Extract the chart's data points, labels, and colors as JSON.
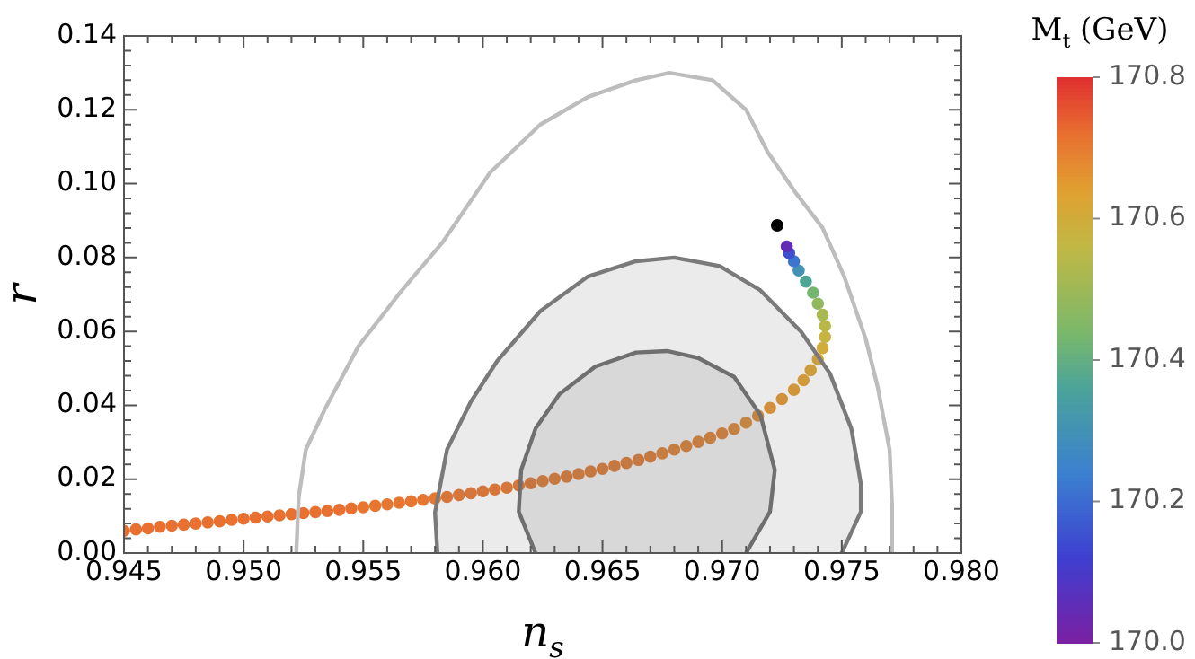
{
  "chart_data": {
    "type": "scatter",
    "xlabel": "n$_{s}$",
    "ylabel": "r",
    "clabel": "M$_{t}$ (GeV)",
    "xlim": [
      0.945,
      0.98
    ],
    "ylim": [
      0,
      0.14
    ],
    "xticks": [
      {
        "value": 0.945,
        "label": "0.945"
      },
      {
        "value": 0.95,
        "label": "0.950"
      },
      {
        "value": 0.955,
        "label": "0.955"
      },
      {
        "value": 0.96,
        "label": "0.960"
      },
      {
        "value": 0.965,
        "label": "0.965"
      },
      {
        "value": 0.97,
        "label": "0.970"
      },
      {
        "value": 0.975,
        "label": "0.975"
      },
      {
        "value": 0.98,
        "label": "0.980"
      }
    ],
    "yticks": [
      {
        "value": 0,
        "label": "0.00"
      },
      {
        "value": 0.02,
        "label": "0.02"
      },
      {
        "value": 0.04,
        "label": "0.04"
      },
      {
        "value": 0.06,
        "label": "0.06"
      },
      {
        "value": 0.08,
        "label": "0.08"
      },
      {
        "value": 0.1,
        "label": "0.10"
      },
      {
        "value": 0.12,
        "label": "0.12"
      },
      {
        "value": 0.14,
        "label": "0.14"
      }
    ],
    "clim": [
      170.0,
      170.8
    ],
    "cticks": [
      {
        "value": 170.0,
        "label": "170.0"
      },
      {
        "value": 170.2,
        "label": "170.2"
      },
      {
        "value": 170.4,
        "label": "170.4"
      },
      {
        "value": 170.6,
        "label": "170.6"
      },
      {
        "value": 170.8,
        "label": "170.8"
      }
    ],
    "grid": false,
    "series": [
      {
        "type": "line",
        "color": "#bdbdbd",
        "marker": "none",
        "x": [
          0.9522,
          0.9523,
          0.9526,
          0.9534,
          0.9548,
          0.9566,
          0.9583,
          0.9603,
          0.9624,
          0.9644,
          0.9664,
          0.9678,
          0.9696,
          0.971,
          0.9719,
          0.9731,
          0.9742,
          0.9751,
          0.976,
          0.9765,
          0.977,
          0.9771,
          0.9771
        ],
        "values": [
          0,
          0.015,
          0.028,
          0.039,
          0.056,
          0.071,
          0.084,
          0.103,
          0.116,
          0.1235,
          0.128,
          0.13,
          0.128,
          0.12,
          0.1086,
          0.0973,
          0.088,
          0.0749,
          0.058,
          0.045,
          0.028,
          0.013,
          0
        ]
      },
      {
        "type": "area",
        "color": "#7a7a7a",
        "marker": "none",
        "x": [
          0.9581,
          0.958,
          0.9585,
          0.9595,
          0.9606,
          0.9624,
          0.9644,
          0.9664,
          0.968,
          0.9699,
          0.9716,
          0.9733,
          0.9745,
          0.9754,
          0.9758,
          0.9758,
          0.975
        ],
        "values": [
          0,
          0.011,
          0.028,
          0.041,
          0.052,
          0.0655,
          0.0749,
          0.079,
          0.08,
          0.0777,
          0.0711,
          0.0599,
          0.0487,
          0.0337,
          0.0187,
          0.0112,
          0
        ]
      },
      {
        "type": "area",
        "color": "#6e6e6e",
        "marker": "none",
        "x": [
          0.9622,
          0.9615,
          0.9616,
          0.9622,
          0.9632,
          0.9647,
          0.9664,
          0.9677,
          0.969,
          0.9705,
          0.9716,
          0.9722,
          0.972,
          0.971
        ],
        "values": [
          0,
          0.0112,
          0.0225,
          0.0337,
          0.043,
          0.0505,
          0.0543,
          0.0547,
          0.0528,
          0.0477,
          0.0374,
          0.0225,
          0.0112,
          0
        ]
      },
      {
        "type": "scatter",
        "marker": "circle",
        "x": [
          0.945,
          0.9455,
          0.946,
          0.9465,
          0.947,
          0.9475,
          0.948,
          0.9485,
          0.949,
          0.9495,
          0.95,
          0.9505,
          0.951,
          0.9515,
          0.952,
          0.9525,
          0.953,
          0.9535,
          0.954,
          0.9545,
          0.955,
          0.9555,
          0.956,
          0.9565,
          0.957,
          0.9575,
          0.958,
          0.9585,
          0.959,
          0.9595,
          0.96,
          0.9605,
          0.961,
          0.9615,
          0.962,
          0.9625,
          0.963,
          0.9635,
          0.964,
          0.9645,
          0.965,
          0.9655,
          0.966,
          0.9665,
          0.967,
          0.9675,
          0.968,
          0.9685,
          0.969,
          0.9695,
          0.97,
          0.9705,
          0.971,
          0.9715,
          0.972,
          0.9725,
          0.973,
          0.9734,
          0.9737,
          0.974,
          0.9742,
          0.9743,
          0.9743,
          0.9742,
          0.974,
          0.9738,
          0.9735,
          0.9732,
          0.973,
          0.9728,
          0.9727
        ],
        "values": [
          0.006,
          0.0064,
          0.0067,
          0.0071,
          0.0074,
          0.0077,
          0.008,
          0.0083,
          0.0086,
          0.009,
          0.0093,
          0.0096,
          0.0099,
          0.0102,
          0.0105,
          0.0108,
          0.0111,
          0.0114,
          0.0117,
          0.0121,
          0.0124,
          0.0128,
          0.0132,
          0.0136,
          0.014,
          0.0144,
          0.0148,
          0.0152,
          0.0157,
          0.0162,
          0.0167,
          0.0172,
          0.0177,
          0.0183,
          0.0189,
          0.0195,
          0.0201,
          0.0207,
          0.0214,
          0.0221,
          0.0228,
          0.0236,
          0.0244,
          0.0252,
          0.0261,
          0.027,
          0.028,
          0.029,
          0.0301,
          0.0312,
          0.0324,
          0.0336,
          0.0353,
          0.0372,
          0.0393,
          0.0417,
          0.0442,
          0.0468,
          0.0495,
          0.0525,
          0.0555,
          0.0585,
          0.0615,
          0.0645,
          0.0675,
          0.0705,
          0.0735,
          0.0765,
          0.079,
          0.0812,
          0.083
        ],
        "cvalues": [
          170.72,
          170.72,
          170.72,
          170.72,
          170.72,
          170.72,
          170.72,
          170.72,
          170.72,
          170.72,
          170.72,
          170.72,
          170.72,
          170.72,
          170.72,
          170.72,
          170.72,
          170.72,
          170.72,
          170.72,
          170.71,
          170.71,
          170.71,
          170.71,
          170.71,
          170.71,
          170.71,
          170.71,
          170.71,
          170.71,
          170.71,
          170.71,
          170.71,
          170.71,
          170.71,
          170.7,
          170.7,
          170.7,
          170.7,
          170.7,
          170.7,
          170.7,
          170.7,
          170.7,
          170.7,
          170.69,
          170.69,
          170.69,
          170.69,
          170.69,
          170.69,
          170.68,
          170.67,
          170.67,
          170.66,
          170.66,
          170.65,
          170.64,
          170.63,
          170.62,
          170.6,
          170.58,
          170.55,
          170.52,
          170.48,
          170.43,
          170.37,
          170.3,
          170.22,
          170.15,
          170.05
        ],
        "colors": [
          "#e87030",
          "#e87030",
          "#e87030",
          "#e87030",
          "#e87030",
          "#e87030",
          "#e87030",
          "#e87030",
          "#e87030",
          "#e87030",
          "#e87030",
          "#e87030",
          "#e87030",
          "#e87030",
          "#e87030",
          "#e87030",
          "#e87030",
          "#e87030",
          "#e87030",
          "#e87030",
          "#e77630",
          "#e77630",
          "#e77630",
          "#e77630",
          "#e77630",
          "#e77630",
          "#e77630",
          "#e77630",
          "#e77630",
          "#e77630",
          "#e77630",
          "#e77630",
          "#e77630",
          "#e77630",
          "#e77630",
          "#e67c30",
          "#e67c30",
          "#e67c30",
          "#e67c30",
          "#e67c30",
          "#e67c30",
          "#e67c30",
          "#e67c30",
          "#e67c30",
          "#e67c30",
          "#e58230",
          "#e58230",
          "#e58230",
          "#e58230",
          "#e58230",
          "#e58230",
          "#e48830",
          "#e38e30",
          "#e38e30",
          "#e29430",
          "#e29430",
          "#e19a30",
          "#e0a030",
          "#dca333",
          "#d8a635",
          "#d0ac3b",
          "#c8b240",
          "#bab848",
          "#a9b851",
          "#92b85e",
          "#75b570",
          "#50a694",
          "#4392b5",
          "#3c75d0",
          "#3e4fd0",
          "#622cb5"
        ]
      },
      {
        "type": "scatter",
        "color": "#000000",
        "marker": "circle",
        "x": [
          0.9723
        ],
        "values": [
          0.0887
        ]
      }
    ]
  }
}
